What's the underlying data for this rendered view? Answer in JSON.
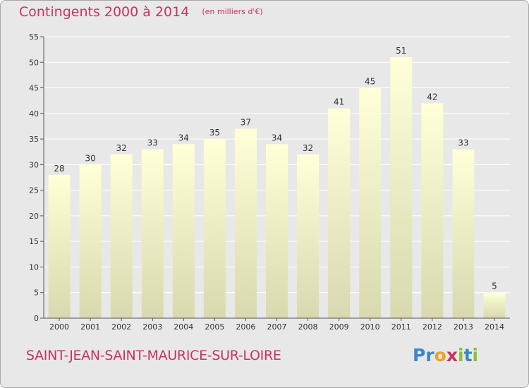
{
  "header": {
    "title": "Contingents 2000 à 2014",
    "subtitle": "(en milliers d'€)"
  },
  "footer": {
    "place_name": "SAINT-JEAN-SAINT-MAURICE-SUR-LOIRE",
    "logo_text": "Proxiti",
    "logo_letters": [
      {
        "ch": "P",
        "color": "#3a86c8"
      },
      {
        "ch": "r",
        "color": "#3a86c8"
      },
      {
        "ch": "o",
        "color": "#f0a020"
      },
      {
        "ch": "x",
        "color": "#c8335f"
      },
      {
        "ch": "i",
        "color": "#8cbf3f"
      },
      {
        "ch": "t",
        "color": "#3a86c8"
      },
      {
        "ch": "i",
        "color": "#8cbf3f"
      }
    ]
  },
  "colors": {
    "accent": "#c8335f",
    "bar_top": "#ffffd8",
    "bar_bottom": "#d9d9b0",
    "grid": "#ffffff",
    "axis_text": "#333333"
  },
  "chart_data": {
    "type": "bar",
    "title": "Contingents 2000 à 2014",
    "subtitle": "(en milliers d'€)",
    "categories": [
      "2000",
      "2001",
      "2002",
      "2003",
      "2004",
      "2005",
      "2006",
      "2007",
      "2008",
      "2009",
      "2010",
      "2011",
      "2012",
      "2013",
      "2014"
    ],
    "values": [
      28,
      30,
      32,
      33,
      34,
      35,
      37,
      34,
      32,
      41,
      45,
      51,
      42,
      33,
      5
    ],
    "ylim": [
      0,
      55
    ],
    "yticks": [
      0,
      5,
      10,
      15,
      20,
      25,
      30,
      35,
      40,
      45,
      50,
      55
    ],
    "grid": true,
    "data_labels": true
  }
}
